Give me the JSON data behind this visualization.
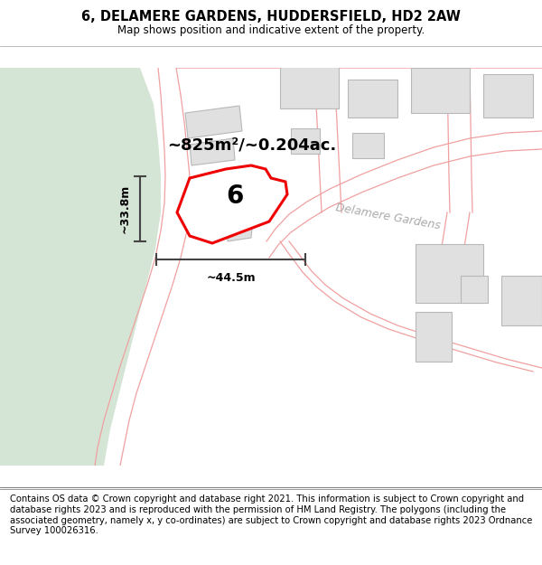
{
  "title": "6, DELAMERE GARDENS, HUDDERSFIELD, HD2 2AW",
  "subtitle": "Map shows position and indicative extent of the property.",
  "footer": "Contains OS data © Crown copyright and database right 2021. This information is subject to Crown copyright and database rights 2023 and is reproduced with the permission of HM Land Registry. The polygons (including the associated geometry, namely x, y co-ordinates) are subject to Crown copyright and database rights 2023 Ordnance Survey 100026316.",
  "area_label": "~825m²/~0.204ac.",
  "width_label": "~44.5m",
  "height_label": "~33.8m",
  "plot_number": "6",
  "road_label": "Delamere Gardens",
  "green_color": "#d5e5d5",
  "bg_color": "#ffffff",
  "road_color": "#f0a0a0",
  "road_lw": 0.9,
  "building_fill": "#e0e0e0",
  "building_edge": "#b8b8b8",
  "highlight_color": "#ee0000",
  "highlight_fill": "#ffffff",
  "measure_color": "#444444",
  "title_fontsize": 10.5,
  "subtitle_fontsize": 8.5,
  "footer_fontsize": 7.2,
  "area_fontsize": 13,
  "road_label_fontsize": 9,
  "plot_num_fontsize": 20
}
